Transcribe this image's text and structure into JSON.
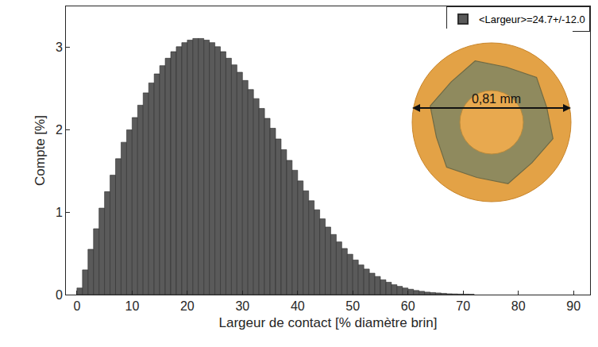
{
  "chart_data": {
    "type": "histogram",
    "x_label": "Largeur de contact [% diamètre brin]",
    "y_label": "Compte [%]",
    "bins": [
      0,
      1,
      2,
      3,
      4,
      5,
      6,
      7,
      8,
      9,
      10,
      11,
      12,
      13,
      14,
      15,
      16,
      17,
      18,
      19,
      20,
      21,
      22,
      23,
      24,
      25,
      26,
      27,
      28,
      29,
      30,
      31,
      32,
      33,
      34,
      35,
      36,
      37,
      38,
      39,
      40,
      41,
      42,
      43,
      44,
      45,
      46,
      47,
      48,
      49,
      50,
      51,
      52,
      53,
      54,
      55,
      56,
      57,
      58,
      59,
      60,
      61,
      62,
      63,
      64,
      65,
      66,
      67,
      68,
      69,
      70,
      71,
      72
    ],
    "series": [
      {
        "name": "<Largeur>=24.7+/-12.0",
        "color": "#5a5a5a",
        "values": [
          0.08,
          0.3,
          0.55,
          0.8,
          1.05,
          1.25,
          1.45,
          1.65,
          1.85,
          2.0,
          2.15,
          2.3,
          2.45,
          2.57,
          2.68,
          2.78,
          2.87,
          2.95,
          3.01,
          3.06,
          3.09,
          3.11,
          3.11,
          3.09,
          3.06,
          3.01,
          2.95,
          2.87,
          2.79,
          2.7,
          2.6,
          2.49,
          2.38,
          2.26,
          2.14,
          2.02,
          1.89,
          1.76,
          1.63,
          1.51,
          1.38,
          1.26,
          1.14,
          1.03,
          0.92,
          0.82,
          0.73,
          0.64,
          0.56,
          0.49,
          0.42,
          0.36,
          0.31,
          0.26,
          0.22,
          0.18,
          0.15,
          0.12,
          0.1,
          0.08,
          0.065,
          0.05,
          0.04,
          0.03,
          0.025,
          0.02,
          0.015,
          0.01,
          0.008,
          0.006,
          0.005,
          0.004
        ]
      }
    ],
    "xlim": [
      -2,
      93
    ],
    "ylim": [
      0,
      3.5
    ],
    "xticks": [
      0,
      10,
      20,
      30,
      40,
      50,
      60,
      70,
      80,
      90
    ],
    "yticks": [
      0,
      1,
      2,
      3
    ],
    "grid": false,
    "legend": "upper right",
    "inset": {
      "type": "image",
      "label": "0,81 mm"
    }
  }
}
